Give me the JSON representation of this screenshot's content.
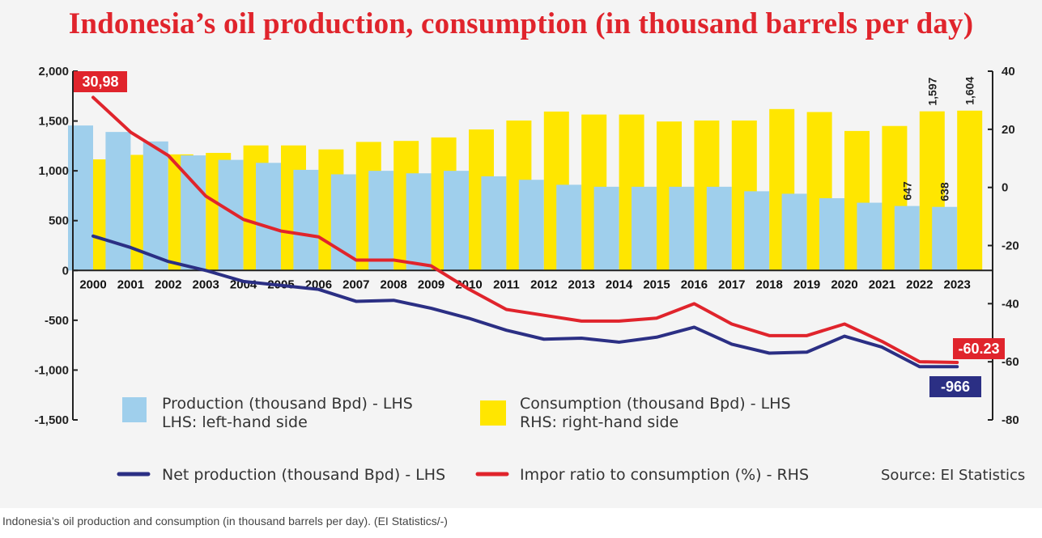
{
  "title": "Indonesia’s oil production, consumption (in thousand barrels per day)",
  "source": "Source: EI Statistics",
  "caption": "Indonesia’s oil production and consumption (in thousand barrels per day). (EI Statistics/-)",
  "colors": {
    "production": "#9fcfec",
    "consumption": "#ffe600",
    "net": "#2b2f84",
    "ratio": "#e0242c",
    "title": "#e0242c"
  },
  "legend": {
    "production_line1": "Production (thousand Bpd) - LHS",
    "production_line2": "LHS: left-hand side",
    "consumption_line1": "Consumption (thousand Bpd) - LHS",
    "consumption_line2": "RHS: right-hand side",
    "net": "Net production (thousand Bpd) - LHS",
    "ratio": "Impor ratio to consumption (%) - RHS"
  },
  "chart_data": {
    "type": "bar",
    "categories": [
      "2000",
      "2001",
      "2002",
      "2003",
      "2004",
      "2005",
      "2006",
      "2007",
      "2008",
      "2009",
      "2010",
      "2011",
      "2012",
      "2013",
      "2014",
      "2015",
      "2016",
      "2017",
      "2018",
      "2019",
      "2020",
      "2021",
      "2022",
      "2023"
    ],
    "series": [
      {
        "name": "Production (thousand Bpd) - LHS",
        "type": "bar",
        "axis": "left",
        "values": [
          1455,
          1390,
          1295,
          1155,
          1110,
          1080,
          1010,
          965,
          1000,
          975,
          1000,
          945,
          910,
          860,
          840,
          840,
          840,
          840,
          795,
          770,
          725,
          680,
          647,
          638
        ]
      },
      {
        "name": "Consumption (thousand Bpd) - LHS",
        "type": "bar",
        "axis": "left",
        "values": [
          1115,
          1160,
          1165,
          1180,
          1255,
          1255,
          1215,
          1290,
          1300,
          1335,
          1415,
          1505,
          1595,
          1565,
          1565,
          1495,
          1505,
          1505,
          1620,
          1590,
          1400,
          1450,
          1597,
          1604
        ]
      },
      {
        "name": "Net production (thousand Bpd) - LHS",
        "type": "line",
        "axis": "left",
        "values": [
          345,
          230,
          90,
          0,
          -110,
          -150,
          -190,
          -310,
          -300,
          -380,
          -480,
          -600,
          -690,
          -680,
          -720,
          -670,
          -570,
          -740,
          -830,
          -820,
          -660,
          -770,
          -966,
          -966
        ]
      },
      {
        "name": "Impor ratio to consumption (%) - RHS",
        "type": "line",
        "axis": "right",
        "values": [
          30.98,
          19,
          11,
          -3,
          -11,
          -15,
          -17,
          -25,
          -25,
          -27,
          -35,
          -42,
          -44,
          -46,
          -46,
          -45,
          -40,
          -47,
          -51,
          -51,
          -47,
          -53,
          -60,
          -60.23
        ]
      }
    ],
    "data_labels": {
      "production_2022": "647",
      "production_2023": "638",
      "consumption_2022": "1,597",
      "consumption_2023": "1,604",
      "ratio_start": "30,98",
      "ratio_end": "-60.23",
      "net_end": "-966"
    },
    "left_axis": {
      "ylim": [
        -1500,
        2000
      ],
      "ticks": [
        -1500,
        -1000,
        -500,
        0,
        500,
        1000,
        1500,
        2000
      ],
      "tick_labels": [
        "-1,500",
        "-1,000",
        "-500",
        "0",
        "500",
        "1,000",
        "1,500",
        "2,000"
      ]
    },
    "right_axis": {
      "ylim": [
        -80,
        40
      ],
      "ticks": [
        -80,
        -60,
        -40,
        -20,
        0,
        20,
        40
      ],
      "tick_labels": [
        "-80",
        "-60",
        "-40",
        "-20",
        "0",
        "20",
        "40"
      ]
    },
    "grid": false,
    "legend_position": "bottom"
  }
}
